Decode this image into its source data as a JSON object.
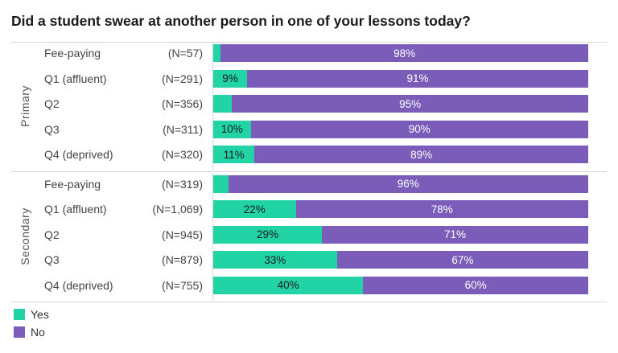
{
  "chart_data": {
    "type": "bar",
    "orientation": "horizontal",
    "stacked": true,
    "title": "Did a student swear at another person in one of your lessons today?",
    "xlim": [
      0,
      100
    ],
    "legend_position": "bottom-left",
    "colors": {
      "Yes": "#22d3a6",
      "No": "#7b5cb8"
    },
    "series_names": [
      "Yes",
      "No"
    ],
    "groups": [
      {
        "name": "Primary",
        "rows": [
          {
            "label": "Fee-paying",
            "n": "(N=57)",
            "yes": 2,
            "no": 98,
            "yes_label": "",
            "no_label": "98%"
          },
          {
            "label": "Q1 (affluent)",
            "n": "(N=291)",
            "yes": 9,
            "no": 91,
            "yes_label": "9%",
            "no_label": "91%"
          },
          {
            "label": "Q2",
            "n": "(N=356)",
            "yes": 5,
            "no": 95,
            "yes_label": "",
            "no_label": "95%"
          },
          {
            "label": "Q3",
            "n": "(N=311)",
            "yes": 10,
            "no": 90,
            "yes_label": "10%",
            "no_label": "90%"
          },
          {
            "label": "Q4 (deprived)",
            "n": "(N=320)",
            "yes": 11,
            "no": 89,
            "yes_label": "11%",
            "no_label": "89%"
          }
        ]
      },
      {
        "name": "Secondary",
        "rows": [
          {
            "label": "Fee-paying",
            "n": "(N=319)",
            "yes": 4,
            "no": 96,
            "yes_label": "",
            "no_label": "96%"
          },
          {
            "label": "Q1 (affluent)",
            "n": "(N=1,069)",
            "yes": 22,
            "no": 78,
            "yes_label": "22%",
            "no_label": "78%"
          },
          {
            "label": "Q2",
            "n": "(N=945)",
            "yes": 29,
            "no": 71,
            "yes_label": "29%",
            "no_label": "71%"
          },
          {
            "label": "Q3",
            "n": "(N=879)",
            "yes": 33,
            "no": 67,
            "yes_label": "33%",
            "no_label": "67%"
          },
          {
            "label": "Q4 (deprived)",
            "n": "(N=755)",
            "yes": 40,
            "no": 60,
            "yes_label": "40%",
            "no_label": "60%"
          }
        ]
      }
    ]
  }
}
